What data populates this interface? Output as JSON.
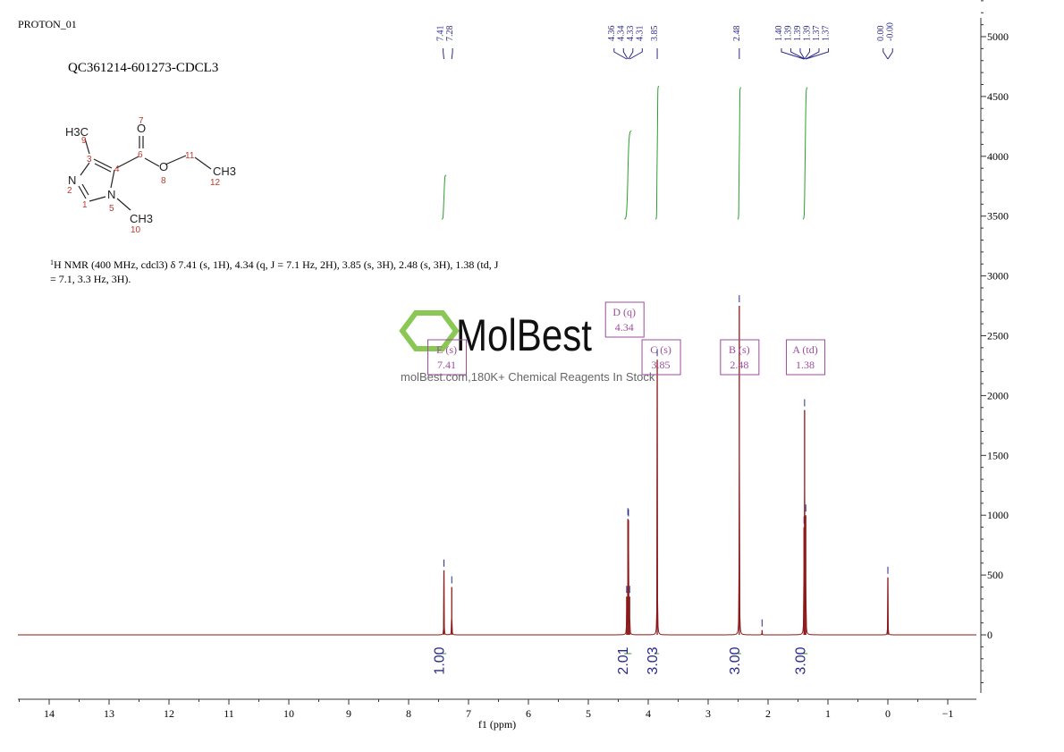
{
  "header": {
    "experiment": "PROTON_01",
    "sample": "QC361214-601273-CDCL3"
  },
  "structure": {
    "atoms": [
      "H3C",
      "O",
      "O",
      "CH3",
      "N",
      "N",
      "CH3"
    ],
    "numbers": [
      "1",
      "2",
      "3",
      "4",
      "5",
      "6",
      "7",
      "8",
      "9",
      "10",
      "11",
      "12"
    ]
  },
  "description": {
    "line1": "H NMR (400 MHz, cdcl3) δ 7.41 (s, 1H), 4.34 (q, J = 7.1 Hz, 2H), 3.85 (s, 3H), 2.48 (s, 3H), 1.38 (td, J",
    "line2": "= 7.1, 3.3 Hz, 3H).",
    "superscript": "1"
  },
  "watermark": {
    "brand": "MolBest",
    "tagline": "molBest.com,180K+ Chemical Reagents In Stock",
    "color": "#7dc242"
  },
  "colors": {
    "spectrum": "#8b1a1a",
    "integral": "#2e9e2e",
    "labels": "#2a2a8a",
    "box": "#9b4d9b"
  },
  "chart_data": {
    "type": "line",
    "xlabel": "f1 (ppm)",
    "xlim": [
      14.5,
      -1.45
    ],
    "ylim": [
      -500,
      5300
    ],
    "x_ticks": [
      "14",
      "13",
      "12",
      "11",
      "10",
      "9",
      "8",
      "7",
      "6",
      "5",
      "4",
      "3",
      "2",
      "1",
      "0",
      "−1"
    ],
    "x_tick_values": [
      14,
      13,
      12,
      11,
      10,
      9,
      8,
      7,
      6,
      5,
      4,
      3,
      2,
      1,
      0,
      -1
    ],
    "y_ticks": [
      "0",
      "500",
      "1000",
      "1500",
      "2000",
      "2500",
      "3000",
      "3500",
      "4000",
      "4500",
      "5000"
    ],
    "y_tick_values": [
      0,
      500,
      1000,
      1500,
      2000,
      2500,
      3000,
      3500,
      4000,
      4500,
      5000
    ],
    "peaks": [
      {
        "ppm": 7.41,
        "intensity": 540
      },
      {
        "ppm": 7.28,
        "intensity": 400
      },
      {
        "ppm": 4.36,
        "intensity": 320
      },
      {
        "ppm": 4.34,
        "intensity": 970
      },
      {
        "ppm": 4.33,
        "intensity": 960
      },
      {
        "ppm": 4.31,
        "intensity": 320
      },
      {
        "ppm": 3.85,
        "intensity": 2300
      },
      {
        "ppm": 2.48,
        "intensity": 2750
      },
      {
        "ppm": 2.1,
        "intensity": 40
      },
      {
        "ppm": 1.4,
        "intensity": 900
      },
      {
        "ppm": 1.39,
        "intensity": 1880
      },
      {
        "ppm": 1.37,
        "intensity": 1000
      },
      {
        "ppm": 0.0,
        "intensity": 480
      }
    ],
    "peak_labels": [
      {
        "group": [
          "7.41",
          "7.28"
        ],
        "ppm": [
          7.41,
          7.28
        ]
      },
      {
        "group": [
          "4.36",
          "4.34",
          "4.33",
          "4.31"
        ],
        "ppm": [
          4.36,
          4.34,
          4.33,
          4.31
        ]
      },
      {
        "group": [
          "3.85"
        ],
        "ppm": [
          3.85
        ]
      },
      {
        "group": [
          "2.48"
        ],
        "ppm": [
          2.48
        ]
      },
      {
        "group": [
          "1.40",
          "1.39",
          "1.39",
          "1.39",
          "1.37",
          "1.37"
        ],
        "ppm": [
          1.4,
          1.39,
          1.39,
          1.39,
          1.37,
          1.37
        ]
      },
      {
        "group": [
          "0.00",
          "-0.00"
        ],
        "ppm": [
          0.0,
          0.0
        ]
      }
    ],
    "integrals": [
      {
        "from": 7.45,
        "to": 7.37,
        "value": "1.00"
      },
      {
        "from": 4.4,
        "to": 4.28,
        "value": "2.01"
      },
      {
        "from": 3.88,
        "to": 3.82,
        "value": "3.03"
      },
      {
        "from": 2.51,
        "to": 2.45,
        "value": "3.00"
      },
      {
        "from": 1.42,
        "to": 1.34,
        "value": "3.00"
      }
    ],
    "multiplets": [
      {
        "label": "E (s)",
        "shift": "7.41",
        "ppm": 7.41
      },
      {
        "label": "D (q)",
        "shift": "4.34",
        "ppm": 4.34
      },
      {
        "label": "C (s)",
        "shift": "3.85",
        "ppm": 3.85
      },
      {
        "label": "B (s)",
        "shift": "2.48",
        "ppm": 2.48
      },
      {
        "label": "A (td)",
        "shift": "1.38",
        "ppm": 1.38
      }
    ]
  }
}
